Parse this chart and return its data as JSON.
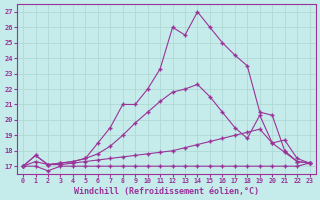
{
  "xlabel": "Windchill (Refroidissement éolien,°C)",
  "bg_color": "#c5ecea",
  "grid_color": "#b0d8d4",
  "line_color": "#993399",
  "xlim_min": -0.5,
  "xlim_max": 23.5,
  "ylim_min": 16.5,
  "ylim_max": 27.5,
  "xticks": [
    0,
    1,
    2,
    3,
    4,
    5,
    6,
    7,
    8,
    9,
    10,
    11,
    12,
    13,
    14,
    15,
    16,
    17,
    18,
    19,
    20,
    21,
    22,
    23
  ],
  "yticks": [
    17,
    18,
    19,
    20,
    21,
    22,
    23,
    24,
    25,
    26,
    27
  ],
  "line1_x": [
    0,
    1,
    2,
    3,
    4,
    5,
    6,
    7,
    8,
    9,
    10,
    11,
    12,
    13,
    14,
    15,
    16,
    17,
    18,
    19,
    20,
    21,
    22,
    23
  ],
  "line1_y": [
    17.0,
    17.0,
    16.7,
    17.0,
    17.0,
    17.0,
    17.0,
    17.0,
    17.0,
    17.0,
    17.0,
    17.0,
    17.0,
    17.0,
    17.0,
    17.0,
    17.0,
    17.0,
    17.0,
    17.0,
    17.0,
    17.0,
    17.0,
    17.2
  ],
  "line2_x": [
    0,
    1,
    2,
    3,
    4,
    5,
    6,
    7,
    8,
    9,
    10,
    11,
    12,
    13,
    14,
    15,
    16,
    17,
    18,
    19,
    20,
    21,
    22,
    23
  ],
  "line2_y": [
    17.0,
    17.3,
    17.1,
    17.1,
    17.2,
    17.3,
    17.4,
    17.5,
    17.6,
    17.7,
    17.8,
    17.9,
    18.0,
    18.2,
    18.4,
    18.6,
    18.8,
    19.0,
    19.2,
    19.4,
    18.5,
    17.9,
    17.3,
    17.2
  ],
  "line3_x": [
    0,
    1,
    2,
    3,
    4,
    5,
    6,
    7,
    8,
    9,
    10,
    11,
    12,
    13,
    14,
    15,
    16,
    17,
    18,
    19,
    20,
    21,
    22,
    23
  ],
  "line3_y": [
    17.0,
    17.7,
    17.1,
    17.2,
    17.3,
    17.5,
    17.8,
    18.3,
    19.0,
    19.8,
    20.5,
    21.2,
    21.8,
    22.0,
    22.3,
    21.5,
    20.5,
    19.5,
    18.8,
    20.3,
    18.5,
    18.7,
    17.5,
    17.2
  ],
  "line4_x": [
    0,
    1,
    2,
    3,
    4,
    5,
    6,
    7,
    8,
    9,
    10,
    11,
    12,
    13,
    14,
    15,
    16,
    17,
    18,
    19,
    20,
    21,
    22,
    23
  ],
  "line4_y": [
    17.0,
    17.7,
    17.1,
    17.2,
    17.3,
    17.5,
    18.5,
    19.5,
    21.0,
    21.0,
    22.0,
    23.3,
    26.0,
    25.5,
    27.0,
    26.0,
    25.0,
    24.2,
    23.5,
    20.5,
    20.3,
    18.0,
    17.3,
    17.2
  ]
}
